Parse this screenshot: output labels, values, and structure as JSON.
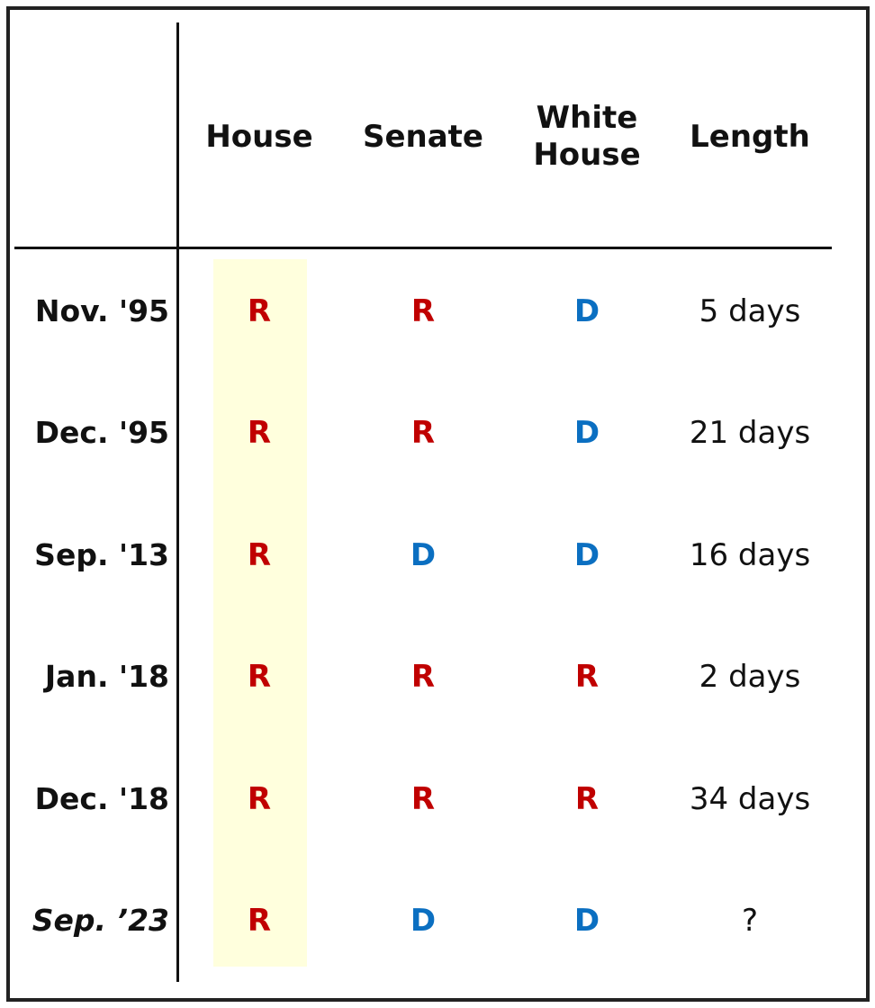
{
  "table": {
    "header": [
      "House",
      "Senate",
      "White House",
      "Length"
    ],
    "rows": [
      [
        "Nov. '95",
        "R",
        "R",
        "D",
        "5 days"
      ],
      [
        "Dec. '95",
        "R",
        "R",
        "D",
        "21 days"
      ],
      [
        "Sep. '13",
        "R",
        "D",
        "D",
        "16 days"
      ],
      [
        "Jan. '18",
        "R",
        "R",
        "R",
        "2 days"
      ],
      [
        "Dec. '18",
        "R",
        "R",
        "R",
        "34 days"
      ],
      [
        "Sep. ’23",
        "R",
        "D",
        "D",
        "?"
      ]
    ],
    "party_colors": {
      "R": "#c00000",
      "D": "#0b6fc1"
    },
    "highlight_color": "#ffffdd"
  }
}
